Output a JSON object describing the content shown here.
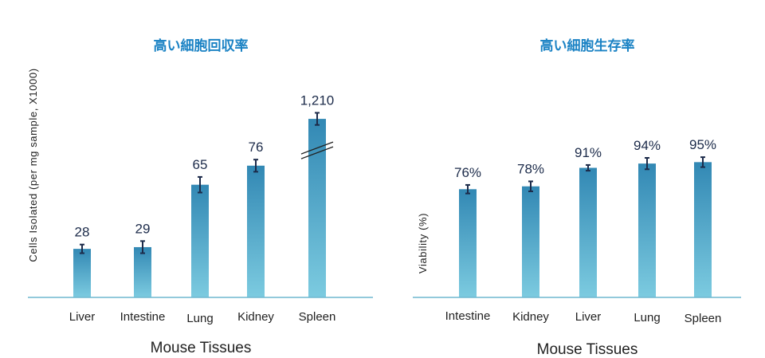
{
  "colors": {
    "title": "#1a82c4",
    "bar_top": "#3288b4",
    "bar_bottom": "#7ccbe0",
    "axis": "#6fb7cf",
    "error": "#1c2b4a"
  },
  "chart_data": [
    {
      "type": "bar",
      "title": "高い細胞回収率",
      "ylabel": "Cells Isolated (per mg sample, X1000)",
      "xlabel": "Mouse Tissues",
      "categories": [
        "Liver",
        "Intestine",
        "Lung",
        "Kidney",
        "Spleen"
      ],
      "values": [
        28,
        29,
        65,
        76,
        1210
      ],
      "labels": [
        "28",
        "29",
        "65",
        "76",
        "1,210"
      ],
      "errors": [
        2.5,
        3.5,
        4.5,
        3.5,
        3.5
      ],
      "axis_break": {
        "category": "Spleen",
        "displayed_as": 103
      },
      "ylim": [
        0,
        115
      ],
      "grid": false
    },
    {
      "type": "bar",
      "title": "高い細胞生存率",
      "ylabel": "Viability (%)",
      "xlabel": "Mouse Tissues",
      "categories": [
        "Intestine",
        "Kidney",
        "Liver",
        "Lung",
        "Spleen"
      ],
      "values": [
        76,
        78,
        91,
        94,
        95
      ],
      "labels": [
        "76%",
        "78%",
        "91%",
        "94%",
        "95%"
      ],
      "errors": [
        3,
        3.5,
        2,
        4,
        3.5
      ],
      "ylim": [
        0,
        140
      ],
      "grid": false
    }
  ]
}
